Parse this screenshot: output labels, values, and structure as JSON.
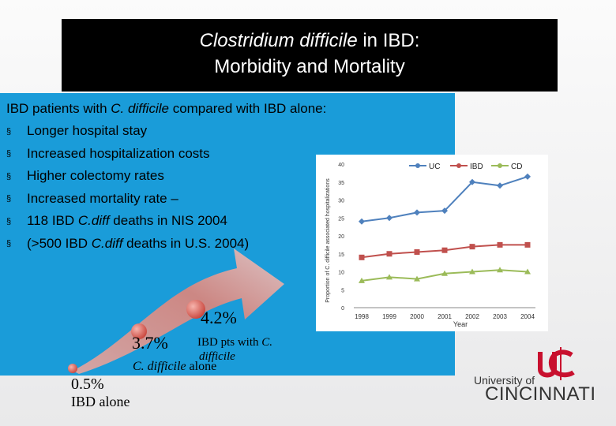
{
  "title": {
    "line1_italic": "Clostridium difficile",
    "line1_rest": " in IBD:",
    "line2": "Morbidity and Mortality"
  },
  "bullets": {
    "intro_a": "IBD patients with ",
    "intro_b": "C. difficile",
    "intro_c": " compared with IBD alone:",
    "marker": "§",
    "items": [
      "Longer hospital stay",
      "Increased hospitalization costs",
      "Higher colectomy rates",
      "Increased mortality rate –"
    ],
    "item5_a": "118 IBD ",
    "item5_b": "C.diff",
    "item5_c": " deaths in NIS 2004",
    "item6_a": "(>500 IBD ",
    "item6_b": "C.diff",
    "item6_c": " deaths in U.S. 2004)"
  },
  "mortality": {
    "pct_ibd_alone": "0.5%",
    "pct_c_difficile": "3.7%",
    "pct_ibd_pts": "4.2%",
    "lbl_ibd_alone": "IBD alone",
    "lbl_c_difficile_a": "C. difficile",
    "lbl_c_difficile_b": " alone",
    "lbl_ibd_pts_a": "IBD pts with ",
    "lbl_ibd_pts_b": "C.",
    "lbl_ibd_pts_c": "difficile"
  },
  "chart_data": {
    "type": "line",
    "ylabel": "Proportion of C. difficile associated hospitalizations",
    "xlabel": "Year",
    "ylim": [
      0,
      40
    ],
    "yticks": [
      0,
      5,
      10,
      15,
      20,
      25,
      30,
      35,
      40
    ],
    "categories": [
      "1998",
      "1999",
      "2000",
      "2001",
      "2002",
      "2003",
      "2004"
    ],
    "legend_position": "top",
    "series": [
      {
        "name": "UC",
        "color": "#4f81bd",
        "marker": "diamond",
        "values": [
          24,
          25,
          26.5,
          27,
          35,
          34,
          36.5
        ]
      },
      {
        "name": "IBD",
        "color": "#c0504d",
        "marker": "square",
        "values": [
          14,
          15,
          15.5,
          16,
          17,
          17.5,
          17.5
        ]
      },
      {
        "name": "CD",
        "color": "#9bbb59",
        "marker": "triangle",
        "values": [
          7.5,
          8.5,
          8,
          9.5,
          10,
          10.5,
          10
        ]
      }
    ]
  },
  "logo": {
    "line1": "University of",
    "line2": "CINCINNATI",
    "color": "#c8102e"
  }
}
